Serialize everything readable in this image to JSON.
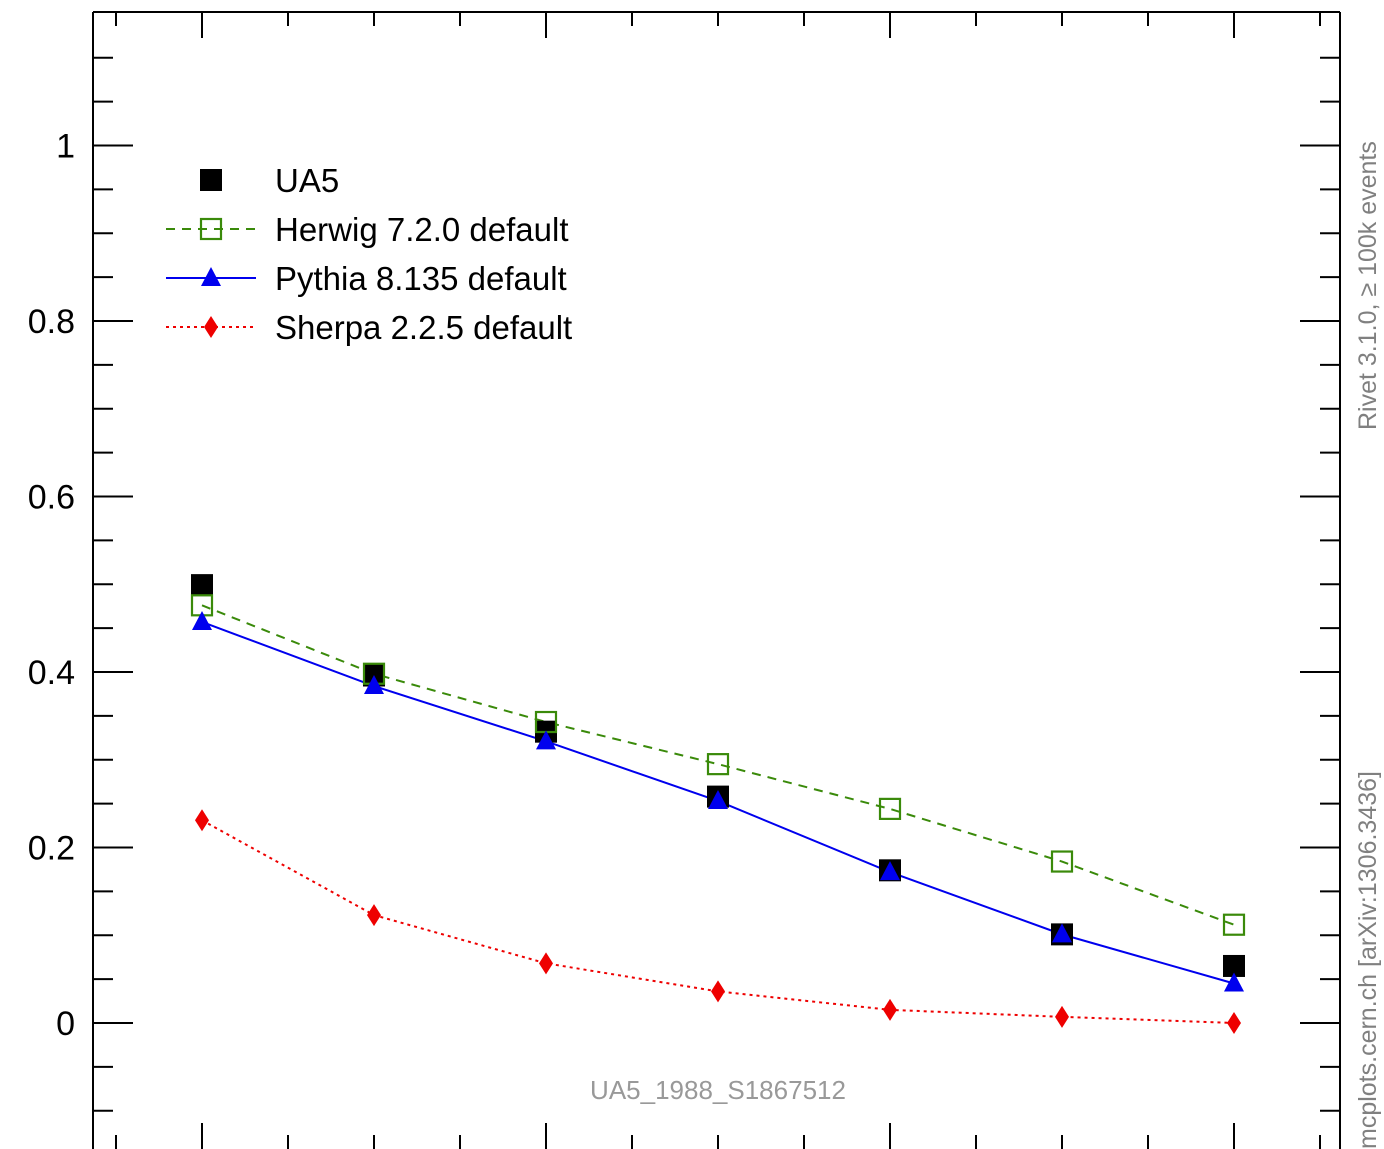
{
  "chart_data": {
    "type": "line",
    "title": "",
    "xlabel": "",
    "ylabel": "",
    "ylim": [
      -0.1155,
      1.1575
    ],
    "x": [
      1,
      2,
      3,
      4,
      5,
      6,
      7
    ],
    "yticks": [
      0,
      0.2,
      0.4,
      0.6,
      0.8,
      1
    ],
    "ytick_labels": [
      "0",
      "0.2",
      "0.4",
      "0.6",
      "0.8",
      "1"
    ],
    "grid": false,
    "legend_position": "top-left",
    "series": [
      {
        "name": "UA5",
        "style": "markers",
        "marker": "filled-square",
        "color": "#000000",
        "values": [
          0.499,
          0.396,
          0.332,
          0.258,
          0.174,
          0.101,
          0.065
        ]
      },
      {
        "name": "Herwig 7.2.0 default",
        "style": "dashed",
        "marker": "open-square",
        "color": "#3a8a0a",
        "values": [
          0.476,
          0.398,
          0.343,
          0.295,
          0.244,
          0.184,
          0.112
        ]
      },
      {
        "name": "Pythia 8.135 default",
        "style": "solid",
        "marker": "filled-triangle",
        "color": "#0000ee",
        "values": [
          0.457,
          0.384,
          0.321,
          0.253,
          0.172,
          0.101,
          0.045
        ]
      },
      {
        "name": "Sherpa 2.2.5 default",
        "style": "dotted",
        "marker": "filled-diamond",
        "color": "#ee0000",
        "values": [
          0.231,
          0.123,
          0.068,
          0.036,
          0.015,
          0.007,
          0.0
        ]
      }
    ],
    "annotations": {
      "watermark": "UA5_1988_S1867512",
      "side_top": "Rivet 3.1.0, ≥ 100k events",
      "side_bottom": "mcplots.cern.ch [arXiv:1306.3436]"
    }
  }
}
